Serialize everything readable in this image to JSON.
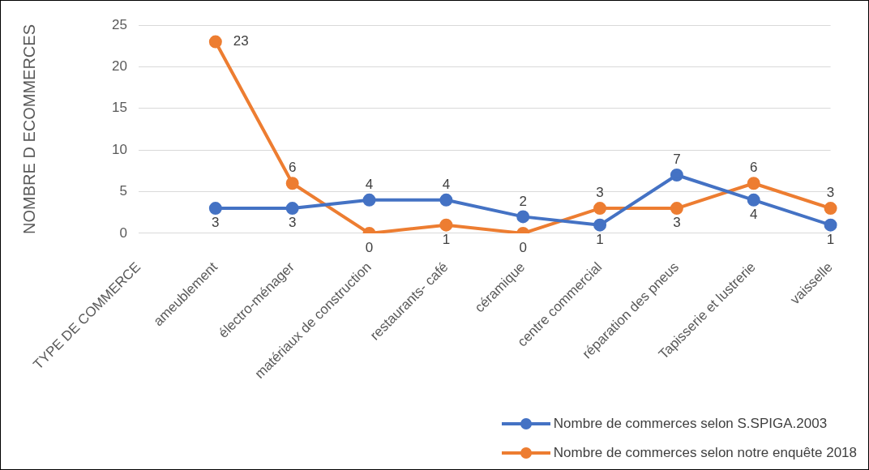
{
  "chart_data": {
    "type": "line",
    "ylabel": "NOMBRE D ECOMMERCES",
    "categories": [
      "TYPE DE COMMERCE",
      "ameublement",
      "électro-ménager",
      "matériaux de construction",
      "restaurants- café",
      "céramique",
      "centre commercial",
      "réparation des pneus",
      "Tapisserie et lustrerie",
      "vaisselle"
    ],
    "series": [
      {
        "name": "Nombre de commerces selon S.SPIGA.2003",
        "color": "#4472c4",
        "values": [
          null,
          3,
          3,
          4,
          4,
          2,
          1,
          7,
          4,
          1
        ]
      },
      {
        "name": "Nombre de commerces selon notre enquête 2018",
        "color": "#ed7d31",
        "values": [
          null,
          23,
          6,
          0,
          1,
          0,
          3,
          3,
          6,
          3
        ]
      }
    ],
    "ylim": [
      0,
      25
    ],
    "yticks": [
      0,
      5,
      10,
      15,
      20,
      25
    ],
    "grid": "y",
    "legend": "bottom right",
    "data_labels": true,
    "marker": "circle",
    "line_style": "solid"
  }
}
